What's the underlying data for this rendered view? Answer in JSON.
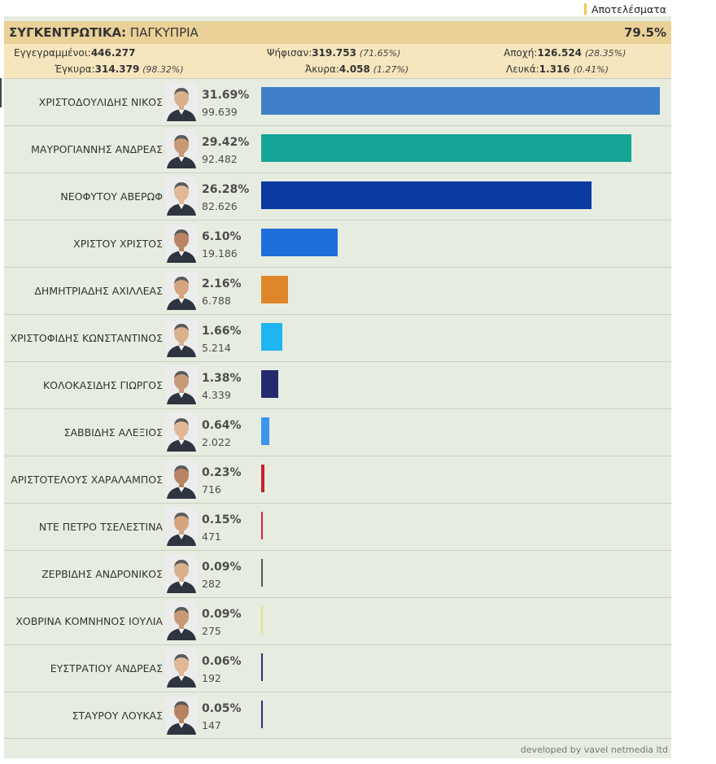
{
  "legend": {
    "label": "Αποτελέσματα",
    "color": "#f2c94c"
  },
  "summary": {
    "title_bold": "ΣΥΓΚΕΝΤΡΩΤΙΚΑ:",
    "title_rest": " ΠΑΓΚΥΠΡΙΑ",
    "turnout": "79.5%",
    "registered_label": "Εγγεγραμμένοι:",
    "registered_value": "446.277",
    "voted_label": "Ψήφισαν:",
    "voted_value": "319.753",
    "voted_pct": "(71.65%)",
    "abstention_label": "Αποχή:",
    "abstention_value": "126.524",
    "abstention_pct": "(28.35%)",
    "valid_label": "Έγκυρα:",
    "valid_value": "314.379",
    "valid_pct": "(98.32%)",
    "invalid_label": "Άκυρα:",
    "invalid_value": "4.058",
    "invalid_pct": "(1.27%)",
    "blank_label": "Λευκά:",
    "blank_value": "1.316",
    "blank_pct": "(0.41%)"
  },
  "chart_data": {
    "type": "bar",
    "orientation": "horizontal",
    "candidates": [
      {
        "name": "ΧΡΙΣΤΟΔΟΥΛΙΔΗΣ ΝΙΚΟΣ",
        "pct_label": "31.69%",
        "votes_label": "99.639",
        "pct": 31.69,
        "votes": 99639,
        "color": "#4080c8"
      },
      {
        "name": "ΜΑΥΡΟΓΙΑΝΝΗΣ ΑΝΔΡΕΑΣ",
        "pct_label": "29.42%",
        "votes_label": "92.482",
        "pct": 29.42,
        "votes": 92482,
        "color": "#14a597"
      },
      {
        "name": "ΝΕΟΦΥΤΟΥ ΑΒΕΡΩΦ",
        "pct_label": "26.28%",
        "votes_label": "82.626",
        "pct": 26.28,
        "votes": 82626,
        "color": "#0b3aa0"
      },
      {
        "name": "ΧΡΙΣΤΟΥ ΧΡΙΣΤΟΣ",
        "pct_label": "6.10%",
        "votes_label": "19.186",
        "pct": 6.1,
        "votes": 19186,
        "color": "#1e6fdc"
      },
      {
        "name": "ΔΗΜΗΤΡΙΑΔΗΣ ΑΧΙΛΛΕΑΣ",
        "pct_label": "2.16%",
        "votes_label": "6.788",
        "pct": 2.16,
        "votes": 6788,
        "color": "#e0862a"
      },
      {
        "name": "ΧΡΙΣΤΟΦΙΔΗΣ ΚΩΝΣΤΑΝΤΙΝΟΣ",
        "pct_label": "1.66%",
        "votes_label": "5.214",
        "pct": 1.66,
        "votes": 5214,
        "color": "#1fb5f0"
      },
      {
        "name": "ΚΟΛΟΚΑΣΙΔΗΣ ΓΙΩΡΓΟΣ",
        "pct_label": "1.38%",
        "votes_label": "4.339",
        "pct": 1.38,
        "votes": 4339,
        "color": "#252a6e"
      },
      {
        "name": "ΣΑΒΒΙΔΗΣ ΑΛΕΞΙΟΣ",
        "pct_label": "0.64%",
        "votes_label": "2.022",
        "pct": 0.64,
        "votes": 2022,
        "color": "#3b95ef"
      },
      {
        "name": "ΑΡΙΣΤΟΤΕΛΟΥΣ ΧΑΡΑΛΑΜΠΟΣ",
        "pct_label": "0.23%",
        "votes_label": "716",
        "pct": 0.23,
        "votes": 716,
        "color": "#c8202e"
      },
      {
        "name": "ΝΤΕ ΠΕΤΡΟ ΤΣΕΛΕΣΤΙΝΑ",
        "pct_label": "0.15%",
        "votes_label": "471",
        "pct": 0.15,
        "votes": 471,
        "color": "#d6283a"
      },
      {
        "name": "ΖΕΡΒΙΔΗΣ ΑΝΔΡΟΝΙΚΟΣ",
        "pct_label": "0.09%",
        "votes_label": "282",
        "pct": 0.09,
        "votes": 282,
        "color": "#555555"
      },
      {
        "name": "ΧΟΒΡΙΝΑ ΚΟΜΝΗΝΟΣ ΙΟΥΛΙΑ",
        "pct_label": "0.09%",
        "votes_label": "275",
        "pct": 0.09,
        "votes": 275,
        "color": "#e8e07a"
      },
      {
        "name": "ΕΥΣΤΡΑΤΙΟΥ ΑΝΔΡΕΑΣ",
        "pct_label": "0.06%",
        "votes_label": "192",
        "pct": 0.06,
        "votes": 192,
        "color": "#2b2f7a"
      },
      {
        "name": "ΣΤΑΥΡΟΥ ΛΟΥΚΑΣ",
        "pct_label": "0.05%",
        "votes_label": "147",
        "pct": 0.05,
        "votes": 147,
        "color": "#2b2f7a"
      }
    ],
    "xlim": [
      0,
      31.69
    ]
  },
  "credit": "developed by vavel netmedia ltd"
}
